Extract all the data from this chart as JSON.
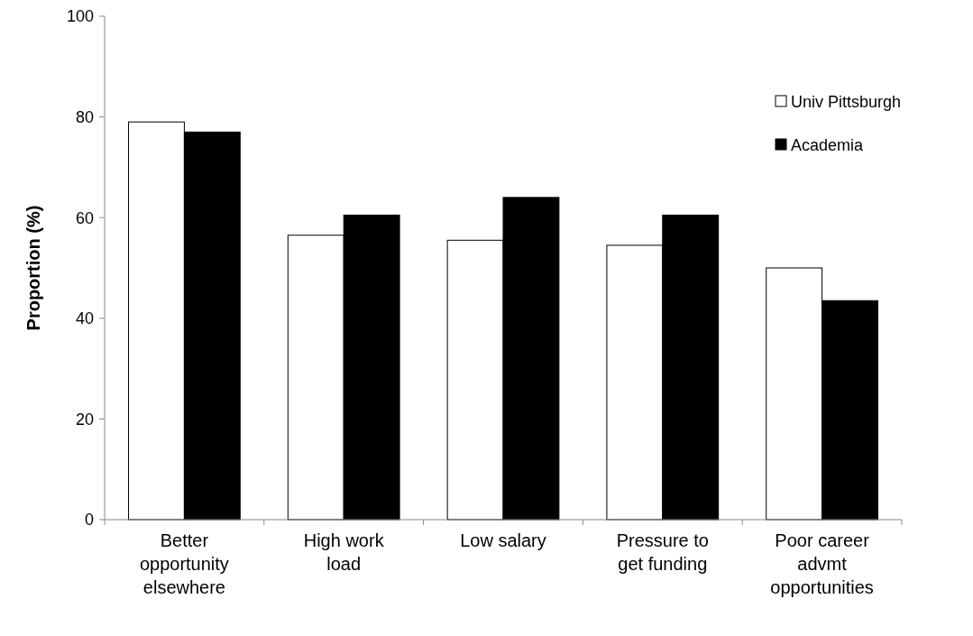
{
  "chart_data": {
    "type": "bar",
    "ylabel": "Proportion (%)",
    "categories": [
      "Better opportunity elsewhere",
      "High work load",
      "Low salary",
      "Pressure to get funding",
      "Poor career advmt opportunities"
    ],
    "series": [
      {
        "name": "Univ Pittsburgh",
        "color": "#ffffff",
        "values": [
          79,
          56.5,
          55.5,
          54.5,
          50
        ]
      },
      {
        "name": "Academia",
        "color": "#000000",
        "values": [
          77,
          60.5,
          64,
          60.5,
          43.5
        ]
      }
    ],
    "ylim": [
      0,
      100
    ],
    "yticks": [
      0,
      20,
      40,
      60,
      80,
      100
    ],
    "grid": false,
    "legend": "top right"
  }
}
